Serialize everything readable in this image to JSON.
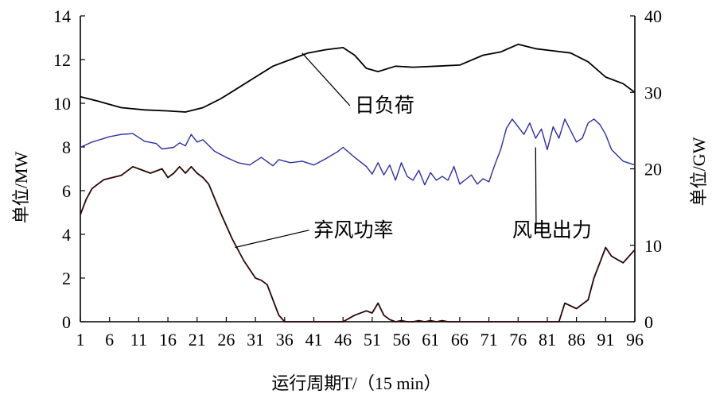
{
  "chart_data": {
    "type": "line",
    "title": "",
    "xlabel": "运行周期T/（15 min）",
    "ylabel_left": "单位/MW",
    "ylabel_right": "单位/GW",
    "xlim": [
      1,
      96
    ],
    "ylim_left": [
      0,
      14
    ],
    "ylim_right": [
      0,
      40
    ],
    "grid": false,
    "legend": "none",
    "x_ticks": [
      1,
      6,
      11,
      16,
      21,
      26,
      31,
      36,
      41,
      46,
      51,
      56,
      61,
      66,
      71,
      76,
      81,
      86,
      91,
      96
    ],
    "y_ticks_left": [
      0,
      2,
      4,
      6,
      8,
      10,
      12,
      14
    ],
    "y_ticks_right": [
      0,
      10,
      20,
      30,
      40
    ],
    "series": [
      {
        "name": "日负荷",
        "axis": "left",
        "color": "#000000",
        "x": [
          1,
          4,
          8,
          12,
          16,
          19,
          22,
          25,
          28,
          31,
          34,
          37,
          40,
          43,
          46,
          48,
          50,
          52,
          55,
          58,
          62,
          66,
          70,
          73,
          76,
          79,
          82,
          85,
          88,
          91,
          94,
          96
        ],
        "values": [
          10.3,
          10.1,
          9.8,
          9.7,
          9.65,
          9.6,
          9.8,
          10.2,
          10.7,
          11.2,
          11.7,
          12.0,
          12.3,
          12.45,
          12.55,
          12.2,
          11.6,
          11.45,
          11.7,
          11.65,
          11.7,
          11.75,
          12.2,
          12.35,
          12.7,
          12.5,
          12.4,
          12.3,
          11.9,
          11.2,
          10.9,
          10.5
        ]
      },
      {
        "name": "风电出力",
        "axis": "right",
        "color": "#2b2f9e",
        "x": [
          1,
          3,
          6,
          8,
          10,
          12,
          14,
          15,
          17,
          18,
          19,
          20,
          21,
          22,
          24,
          26,
          28,
          30,
          32,
          34,
          35,
          37,
          39,
          41,
          43,
          45,
          46,
          48,
          50,
          51,
          52,
          53,
          54,
          55,
          56,
          57,
          58,
          59,
          60,
          61,
          62,
          63,
          64,
          65,
          66,
          67,
          68,
          69,
          70,
          71,
          72,
          73,
          74,
          75,
          76,
          77,
          78,
          79,
          80,
          81,
          82,
          83,
          84,
          85,
          86,
          87,
          88,
          89,
          90,
          91,
          92,
          94,
          96
        ],
        "values": [
          22.8,
          23.5,
          24.2,
          24.5,
          24.6,
          23.6,
          23.3,
          22.6,
          22.8,
          23.4,
          23.0,
          24.5,
          23.5,
          23.8,
          22.3,
          21.5,
          20.8,
          20.5,
          21.5,
          20.4,
          21.2,
          20.8,
          21.0,
          20.5,
          21.3,
          22.2,
          22.8,
          21.5,
          20.3,
          19.3,
          20.8,
          19.2,
          20.5,
          18.5,
          20.8,
          19.0,
          18.5,
          19.8,
          17.9,
          19.5,
          18.5,
          19.0,
          18.5,
          20.3,
          18.0,
          18.6,
          19.2,
          18.0,
          18.7,
          18.3,
          20.5,
          22.5,
          25.3,
          26.5,
          25.5,
          24.5,
          26.0,
          24.0,
          25.2,
          22.5,
          25.5,
          24.0,
          26.5,
          25.0,
          23.5,
          24.0,
          26.0,
          26.5,
          25.8,
          24.5,
          22.5,
          21.0,
          20.5
        ]
      },
      {
        "name": "弃风功率",
        "axis": "left",
        "color": "#2a0505",
        "x": [
          1,
          2,
          3,
          5,
          8,
          10,
          11,
          13,
          15,
          16,
          17,
          18,
          19,
          20,
          21,
          22,
          23,
          25,
          27,
          29,
          31,
          32,
          33,
          34,
          35,
          36,
          37,
          46,
          48,
          50,
          51,
          52,
          53,
          54,
          55,
          56,
          57,
          58,
          59,
          60,
          61,
          62,
          63,
          64,
          83,
          84,
          86,
          88,
          89,
          90,
          91,
          92,
          94,
          96
        ],
        "values": [
          4.9,
          5.6,
          6.1,
          6.5,
          6.7,
          7.1,
          7.0,
          6.8,
          7.0,
          6.6,
          6.8,
          7.1,
          6.8,
          7.1,
          6.8,
          6.6,
          6.3,
          5.0,
          3.8,
          2.8,
          2.0,
          1.9,
          1.7,
          1.0,
          0.3,
          0.0,
          0.0,
          0.0,
          0.3,
          0.5,
          0.4,
          0.85,
          0.3,
          0.1,
          0.0,
          0.05,
          0.0,
          0.0,
          0.05,
          0.0,
          0.05,
          0.0,
          0.05,
          0.0,
          0.0,
          0.85,
          0.6,
          1.0,
          2.0,
          2.7,
          3.4,
          3.0,
          2.7,
          3.3
        ]
      }
    ],
    "annotations": [
      {
        "text": "日负荷",
        "series": "日负荷",
        "target": [
          39,
          12.3
        ],
        "label_at": [
          48,
          9.6
        ]
      },
      {
        "text": "弃风功率",
        "series": "弃风功率",
        "target": [
          27.5,
          3.4
        ],
        "label_at": [
          41,
          3.9
        ]
      },
      {
        "text": "风电出力",
        "series": "风电出力",
        "target": [
          79,
          22.8
        ],
        "label_at": [
          75,
          3.9
        ]
      }
    ]
  }
}
